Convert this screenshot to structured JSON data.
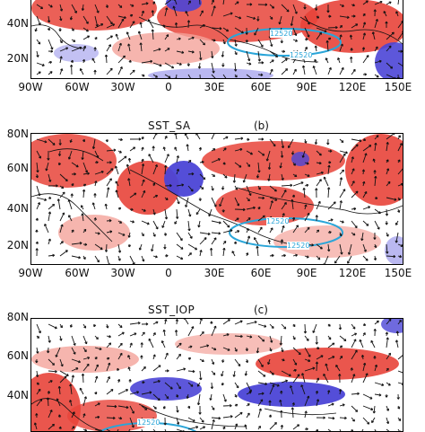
{
  "colors": {
    "warm": "#e8443a",
    "warm_light": "#f4a29a",
    "cool": "#4b45d6",
    "cool_light": "#a9a6ee",
    "contour": "#2aa5d8",
    "vector": "#111111"
  },
  "x_ticks": [
    "90W",
    "60W",
    "30W",
    "0",
    "30E",
    "60E",
    "90E",
    "120E",
    "150E"
  ],
  "panel_a": {
    "y_ticks": [
      "40N",
      "20N"
    ],
    "contour_labels": [
      "12520",
      "12520"
    ]
  },
  "panel_b": {
    "title": "SST_SA",
    "tag": "(b)",
    "y_ticks": [
      "80N",
      "60N",
      "40N",
      "20N"
    ],
    "contour_labels": [
      "12520",
      "12520"
    ]
  },
  "panel_c": {
    "title": "SST_IOP",
    "tag": "(c)",
    "y_ticks": [
      "80N",
      "60N",
      "40N"
    ],
    "contour_labels": [
      "12520"
    ]
  }
}
